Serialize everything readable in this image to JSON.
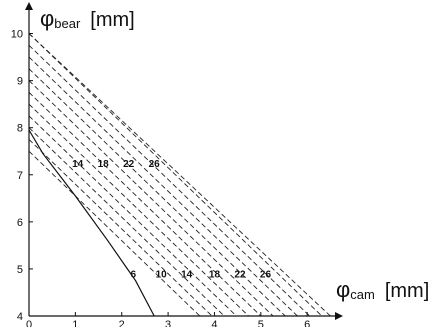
{
  "chart_data": {
    "type": "line",
    "x_axis": {
      "label_symbol": "φ",
      "label_sub": "cam",
      "label_unit": "[mm]",
      "range": [
        0,
        6.6
      ],
      "ticks": [
        0,
        1,
        2,
        3,
        4,
        5,
        6
      ]
    },
    "y_axis": {
      "label_symbol": "φ",
      "label_sub": "bear",
      "label_unit": "[mm]",
      "range": [
        4,
        10.5
      ],
      "ticks": [
        4,
        5,
        6,
        7,
        8,
        9,
        10
      ]
    },
    "grid": false,
    "boundary_upper": {
      "x": [
        0,
        6.5
      ],
      "y": [
        10,
        4
      ]
    },
    "boundary_lower": {
      "x": [
        0,
        0.3,
        1.0,
        1.7,
        2.3,
        2.7
      ],
      "y": [
        7.95,
        7.45,
        6.55,
        5.6,
        4.75,
        4.0
      ]
    },
    "dashed_lines": {
      "slope": -0.95,
      "intercepts_at_x0": [
        10.0,
        9.75,
        9.5,
        9.25,
        9.0,
        8.75,
        8.5,
        8.25,
        8.0,
        7.75,
        7.5
      ]
    },
    "labels": [
      {
        "text": "14",
        "x": 1.05,
        "y": 7.25
      },
      {
        "text": "18",
        "x": 1.6,
        "y": 7.25
      },
      {
        "text": "22",
        "x": 2.15,
        "y": 7.25
      },
      {
        "text": "26",
        "x": 2.7,
        "y": 7.25
      },
      {
        "text": "6",
        "x": 2.25,
        "y": 4.9
      },
      {
        "text": "10",
        "x": 2.85,
        "y": 4.9
      },
      {
        "text": "14",
        "x": 3.4,
        "y": 4.9
      },
      {
        "text": "18",
        "x": 4.0,
        "y": 4.9
      },
      {
        "text": "22",
        "x": 4.55,
        "y": 4.9
      },
      {
        "text": "26",
        "x": 5.1,
        "y": 4.9
      }
    ]
  }
}
